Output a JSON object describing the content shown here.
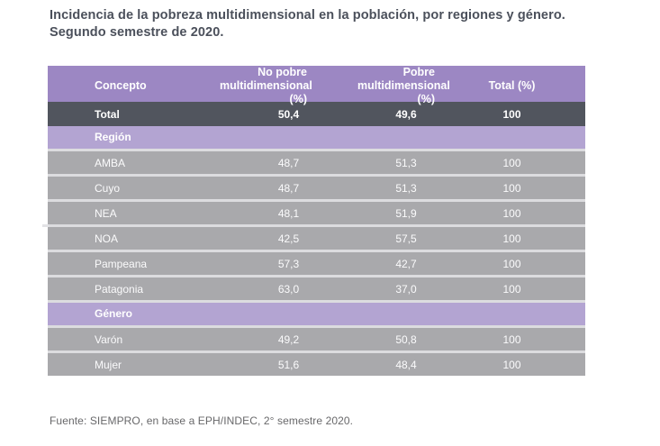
{
  "page": {
    "title_line1": "Incidencia de la pobreza multidimensional en la población, por regiones y género.",
    "title_line2": "Segundo semestre de 2020.",
    "source": "Fuente: SIEMPRO, en base a EPH/INDEC, 2° semestre 2020."
  },
  "colors": {
    "header_purple": "#9c87c3",
    "section_purple": "#b3a4d2",
    "total_row_dark": "#51555e",
    "data_row_gray": "#a9a9ac",
    "row_separator": "#dcdcdf",
    "title_text": "#4b505b",
    "source_text": "#68686a",
    "cell_text": "#ffffff"
  },
  "table": {
    "columns": {
      "concepto": "Concepto",
      "no_pobre_line1": "No pobre",
      "no_pobre_line2": "multidimensional (%)",
      "pobre_line1": "Pobre",
      "pobre_line2": "multidimensional (%)",
      "total": "Total (%)"
    },
    "rows": [
      {
        "type": "total",
        "label": "Total",
        "no_pobre": "50,4",
        "pobre": "49,6",
        "total": "100"
      },
      {
        "type": "section",
        "label": "Región"
      },
      {
        "type": "data",
        "label": "AMBA",
        "no_pobre": "48,7",
        "pobre": "51,3",
        "total": "100"
      },
      {
        "type": "data",
        "label": "Cuyo",
        "no_pobre": "48,7",
        "pobre": "51,3",
        "total": "100"
      },
      {
        "type": "data",
        "label": "NEA",
        "no_pobre": "48,1",
        "pobre": "51,9",
        "total": "100"
      },
      {
        "type": "data",
        "label": "NOA",
        "no_pobre": "42,5",
        "pobre": "57,5",
        "total": "100"
      },
      {
        "type": "data",
        "label": "Pampeana",
        "no_pobre": "57,3",
        "pobre": "42,7",
        "total": "100"
      },
      {
        "type": "data",
        "label": "Patagonia",
        "no_pobre": "63,0",
        "pobre": "37,0",
        "total": "100"
      },
      {
        "type": "section",
        "label": "Género"
      },
      {
        "type": "data",
        "label": "Varón",
        "no_pobre": "49,2",
        "pobre": "50,8",
        "total": "100"
      },
      {
        "type": "data",
        "label": "Mujer",
        "no_pobre": "51,6",
        "pobre": "48,4",
        "total": "100"
      }
    ]
  }
}
